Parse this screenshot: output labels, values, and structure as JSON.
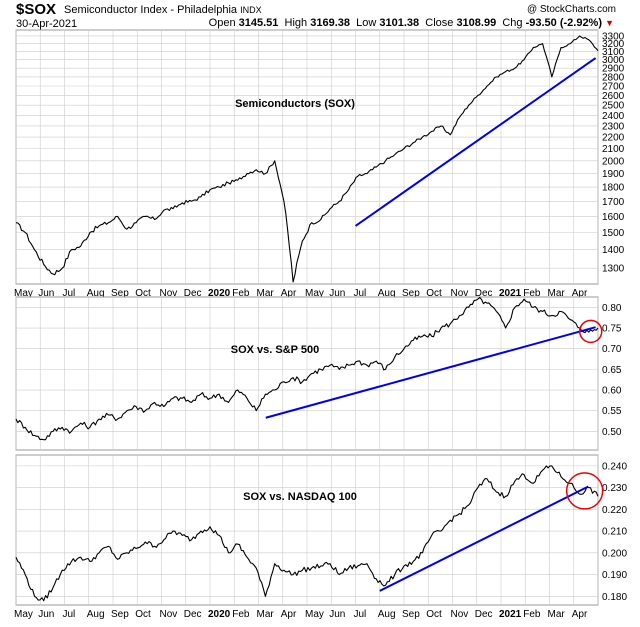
{
  "header": {
    "ticker": "$SOX",
    "description": "Semiconductor Index - Philadelphia",
    "exchange": "INDX",
    "date": "30-Apr-2021",
    "brand": "@ StockCharts.com",
    "open_label": "Open",
    "open": "3145.51",
    "high_label": "High",
    "high": "3169.38",
    "low_label": "Low",
    "low": "3101.38",
    "close_label": "Close",
    "close": "3108.99",
    "chg_label": "Chg",
    "chg": "-93.50 (-2.92%)"
  },
  "colors": {
    "price": "#000000",
    "trendline": "#0000ee",
    "circle": "#ee0000",
    "grid": "#cccccc"
  },
  "chart_data": [
    {
      "type": "line",
      "annotation": "Semiconductors (SOX)",
      "x_tick_labels": [
        "May",
        "Jun",
        "Jul",
        "Aug",
        "Sep",
        "Oct",
        "Nov",
        "Dec",
        "2020",
        "Feb",
        "Mar",
        "Apr",
        "May",
        "Jun",
        "Jul",
        "Aug",
        "Sep",
        "Oct",
        "Nov",
        "Dec",
        "2021",
        "Feb",
        "Mar",
        "Apr"
      ],
      "y_tick_labels": [
        "1300",
        "1400",
        "1500",
        "1600",
        "1700",
        "1800",
        "1900",
        "2000",
        "2100",
        "2200",
        "2300",
        "2400",
        "2500",
        "2600",
        "2700",
        "2800",
        "2900",
        "3000",
        "3100",
        "3200",
        "3300"
      ],
      "yscale": "log",
      "ylim": [
        1220,
        3380
      ],
      "grid": true,
      "series": [
        {
          "values": [
            1560,
            1500,
            1400,
            1320,
            1270,
            1300,
            1400,
            1420,
            1500,
            1540,
            1560,
            1600,
            1520,
            1560,
            1600,
            1580,
            1640,
            1650,
            1690,
            1700,
            1730,
            1780,
            1800,
            1830,
            1850,
            1900,
            1930,
            1900,
            2000,
            1700,
            1230,
            1450,
            1560,
            1580,
            1650,
            1700,
            1780,
            1880,
            1900,
            1950,
            2000,
            2050,
            2100,
            2150,
            2200,
            2250,
            2300,
            2220,
            2380,
            2500,
            2600,
            2700,
            2800,
            2860,
            2900,
            3000,
            3150,
            3200,
            2800,
            3150,
            3200,
            3300,
            3250,
            3109
          ]
        }
      ],
      "trendline": {
        "x": [
          14.0,
          23.9
        ],
        "y": [
          1540,
          3020
        ]
      },
      "circle": null
    },
    {
      "type": "line",
      "annotation": "SOX vs. S&P 500",
      "x_tick_labels": [],
      "y_tick_labels": [
        "0.50",
        "0.55",
        "0.60",
        "0.65",
        "0.70",
        "0.75",
        "0.80"
      ],
      "yscale": "linear",
      "ylim": [
        0.455,
        0.825
      ],
      "grid": true,
      "series": [
        {
          "values": [
            0.53,
            0.51,
            0.49,
            0.48,
            0.5,
            0.51,
            0.5,
            0.52,
            0.51,
            0.53,
            0.54,
            0.53,
            0.55,
            0.56,
            0.55,
            0.57,
            0.56,
            0.58,
            0.58,
            0.57,
            0.59,
            0.58,
            0.59,
            0.57,
            0.6,
            0.58,
            0.55,
            0.59,
            0.6,
            0.62,
            0.63,
            0.62,
            0.64,
            0.65,
            0.66,
            0.65,
            0.66,
            0.67,
            0.66,
            0.67,
            0.65,
            0.68,
            0.7,
            0.72,
            0.73,
            0.73,
            0.75,
            0.76,
            0.78,
            0.8,
            0.82,
            0.81,
            0.79,
            0.75,
            0.8,
            0.82,
            0.8,
            0.79,
            0.78,
            0.79,
            0.77,
            0.75,
            0.74,
            0.75
          ]
        }
      ],
      "trendline": {
        "x": [
          10.3,
          23.9
        ],
        "y": [
          0.533,
          0.752
        ]
      },
      "circle": {
        "x": 23.7,
        "y": 0.742
      }
    },
    {
      "type": "line",
      "annotation": "SOX vs. NASDAQ 100",
      "x_tick_labels": [
        "May",
        "Jun",
        "Jul",
        "Aug",
        "Sep",
        "Oct",
        "Nov",
        "Dec",
        "2020",
        "Feb",
        "Mar",
        "Apr",
        "May",
        "Jun",
        "Jul",
        "Aug",
        "Sep",
        "Oct",
        "Nov",
        "Dec",
        "2021",
        "Feb",
        "Mar",
        "Apr"
      ],
      "y_tick_labels": [
        "0.180",
        "0.190",
        "0.200",
        "0.210",
        "0.220",
        "0.230",
        "0.240"
      ],
      "yscale": "linear",
      "ylim": [
        0.176,
        0.245
      ],
      "grid": true,
      "series": [
        {
          "values": [
            0.198,
            0.19,
            0.18,
            0.178,
            0.184,
            0.192,
            0.196,
            0.198,
            0.196,
            0.2,
            0.203,
            0.197,
            0.2,
            0.202,
            0.205,
            0.203,
            0.206,
            0.21,
            0.208,
            0.206,
            0.21,
            0.212,
            0.208,
            0.2,
            0.204,
            0.198,
            0.193,
            0.18,
            0.195,
            0.192,
            0.19,
            0.192,
            0.193,
            0.194,
            0.195,
            0.19,
            0.193,
            0.194,
            0.195,
            0.188,
            0.185,
            0.19,
            0.194,
            0.196,
            0.2,
            0.208,
            0.21,
            0.215,
            0.218,
            0.222,
            0.23,
            0.234,
            0.228,
            0.226,
            0.233,
            0.236,
            0.232,
            0.238,
            0.24,
            0.235,
            0.232,
            0.227,
            0.23,
            0.226
          ]
        }
      ],
      "trendline": {
        "x": [
          15.0,
          23.6
        ],
        "y": [
          0.1825,
          0.2305
        ]
      },
      "circle": {
        "x": 23.45,
        "y": 0.2285
      }
    }
  ]
}
